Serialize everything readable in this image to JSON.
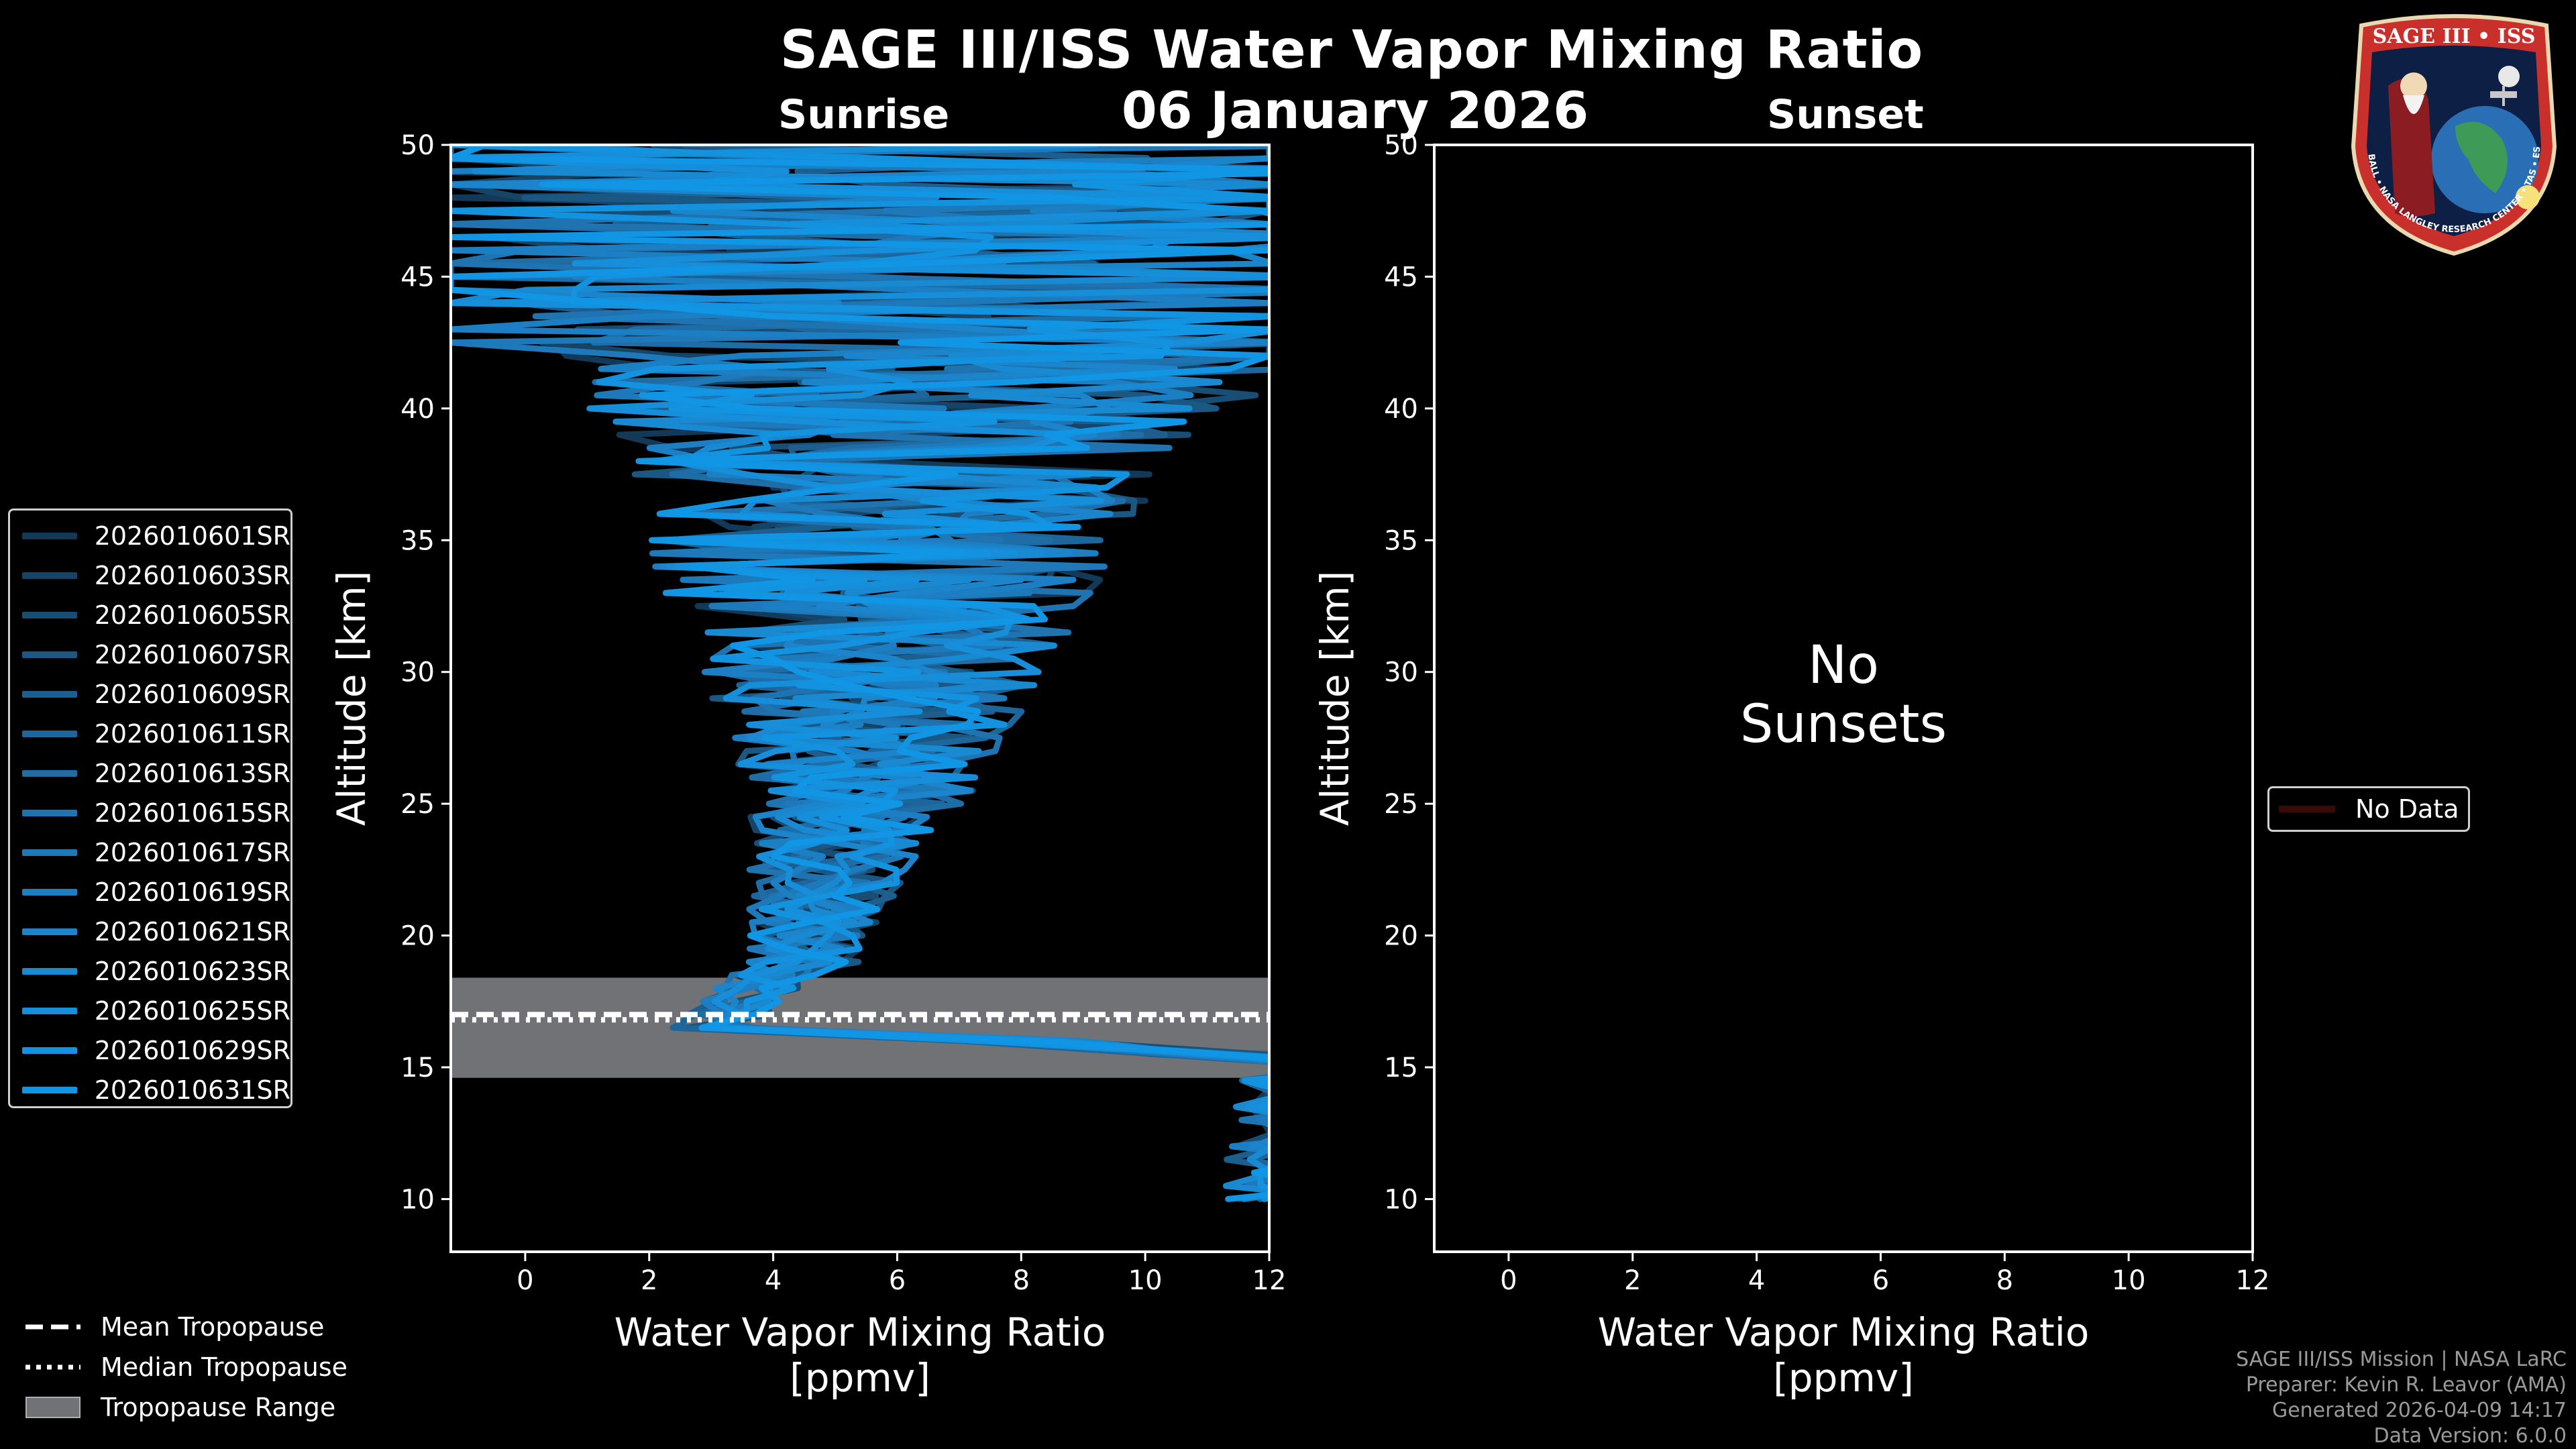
{
  "title": "SAGE III/ISS Water Vapor Mixing Ratio",
  "date": "06 January 2026",
  "chart_data": {
    "type": "line",
    "panels": [
      {
        "name": "Sunrise",
        "xlabel": "Water Vapor Mixing Ratio\n[ppmv]",
        "ylabel": "Altitude [km]",
        "xlim": [
          -1.2,
          12
        ],
        "ylim": [
          8,
          50
        ],
        "xticks": [
          0,
          2,
          4,
          6,
          8,
          10,
          12
        ],
        "yticks": [
          10,
          15,
          20,
          25,
          30,
          35,
          40,
          45,
          50
        ],
        "tropopause": {
          "mean": 17.0,
          "median": 16.8,
          "range": [
            14.6,
            18.4
          ]
        },
        "series": [
          {
            "name": "2026010601SR",
            "color": "#123a58"
          },
          {
            "name": "2026010603SR",
            "color": "#154466"
          },
          {
            "name": "2026010605SR",
            "color": "#184e74"
          },
          {
            "name": "2026010607SR",
            "color": "#1a5782"
          },
          {
            "name": "2026010609SR",
            "color": "#1c5f8f"
          },
          {
            "name": "2026010611SR",
            "color": "#1d669b"
          },
          {
            "name": "2026010613SR",
            "color": "#1e6da6"
          },
          {
            "name": "2026010615SR",
            "color": "#1e73b0"
          },
          {
            "name": "2026010617SR",
            "color": "#1e79ba"
          },
          {
            "name": "2026010619SR",
            "color": "#1d7fc3"
          },
          {
            "name": "2026010621SR",
            "color": "#1b84cb"
          },
          {
            "name": "2026010623SR",
            "color": "#1989d2"
          },
          {
            "name": "2026010625SR",
            "color": "#168ed9"
          },
          {
            "name": "2026010629SR",
            "color": "#1392df"
          },
          {
            "name": "2026010631SR",
            "color": "#1096e5"
          }
        ]
      },
      {
        "name": "Sunset",
        "xlabel": "Water Vapor Mixing Ratio\n[ppmv]",
        "ylabel": "Altitude [km]",
        "xlim": [
          -1.2,
          12
        ],
        "ylim": [
          8,
          50
        ],
        "xticks": [
          0,
          2,
          4,
          6,
          8,
          10,
          12
        ],
        "yticks": [
          10,
          15,
          20,
          25,
          30,
          35,
          40,
          45,
          50
        ],
        "annotation": "No\nSunsets",
        "legend": [
          {
            "name": "No Data",
            "color": "#3a0a0a"
          }
        ]
      }
    ]
  },
  "tropopause_legend": [
    {
      "label": "Mean Tropopause",
      "style": "dashed"
    },
    {
      "label": "Median Tropopause",
      "style": "dotted"
    },
    {
      "label": "Tropopause Range",
      "style": "patch"
    }
  ],
  "footer": {
    "line1": "SAGE III/ISS Mission | NASA LaRC",
    "line2": "Preparer: Kevin R. Leavor (AMA)",
    "line3": "Generated 2026-04-09 14:17",
    "line4": "Data Version: 6.0.0"
  },
  "logo": {
    "top_text": "SAGE III • ISS",
    "ring_text": "BALL • NASA LANGLEY RESEARCH CENTER • TAS • ESA"
  }
}
